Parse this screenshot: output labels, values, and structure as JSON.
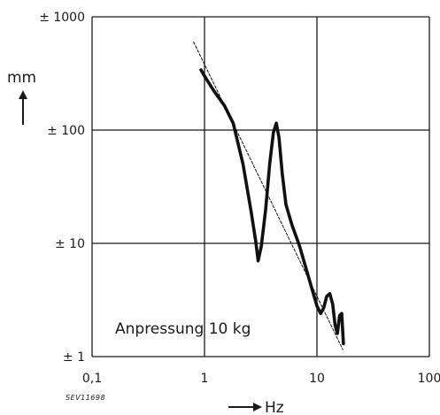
{
  "chart_data": {
    "type": "line",
    "title": "",
    "xlabel": "Hz",
    "ylabel": "mm",
    "xscale": "log",
    "yscale": "log",
    "xlim": [
      0.1,
      100
    ],
    "ylim": [
      1,
      1000
    ],
    "grid": true,
    "x_ticks": [
      {
        "value": 0.1,
        "label": "0,1"
      },
      {
        "value": 1,
        "label": "1"
      },
      {
        "value": 10,
        "label": "10"
      },
      {
        "value": 100,
        "label": "100"
      }
    ],
    "y_ticks": [
      {
        "value": 1,
        "label": "± 1"
      },
      {
        "value": 10,
        "label": "± 10"
      },
      {
        "value": 100,
        "label": "± 100"
      },
      {
        "value": 1000,
        "label": "± 1000"
      }
    ],
    "annotation": "Anpressung 10 kg",
    "figure_code": "SEV11698",
    "series": [
      {
        "style": "solid",
        "x": [
          0.93,
          1.0,
          1.2,
          1.5,
          1.8,
          2.2,
          2.6,
          2.85,
          3.0,
          3.2,
          3.5,
          3.8,
          4.1,
          4.35,
          4.6,
          4.9,
          5.3,
          6.0,
          7.0,
          8.0,
          9.0,
          10.0,
          10.8,
          11.5,
          12.2,
          13.0,
          13.8,
          14.5,
          15.2,
          15.9,
          16.6,
          17.2
        ],
        "y": [
          340,
          300,
          225,
          165,
          115,
          50,
          19,
          10.5,
          7,
          9.5,
          20,
          50,
          95,
          115,
          85,
          42,
          22,
          14.5,
          9.5,
          6,
          4,
          2.8,
          2.4,
          2.7,
          3.4,
          3.6,
          2.9,
          1.9,
          1.6,
          2.3,
          2.4,
          1.3
        ]
      },
      {
        "style": "dashed",
        "x": [
          0.8,
          17
        ],
        "y": [
          600,
          1.15
        ]
      }
    ]
  }
}
